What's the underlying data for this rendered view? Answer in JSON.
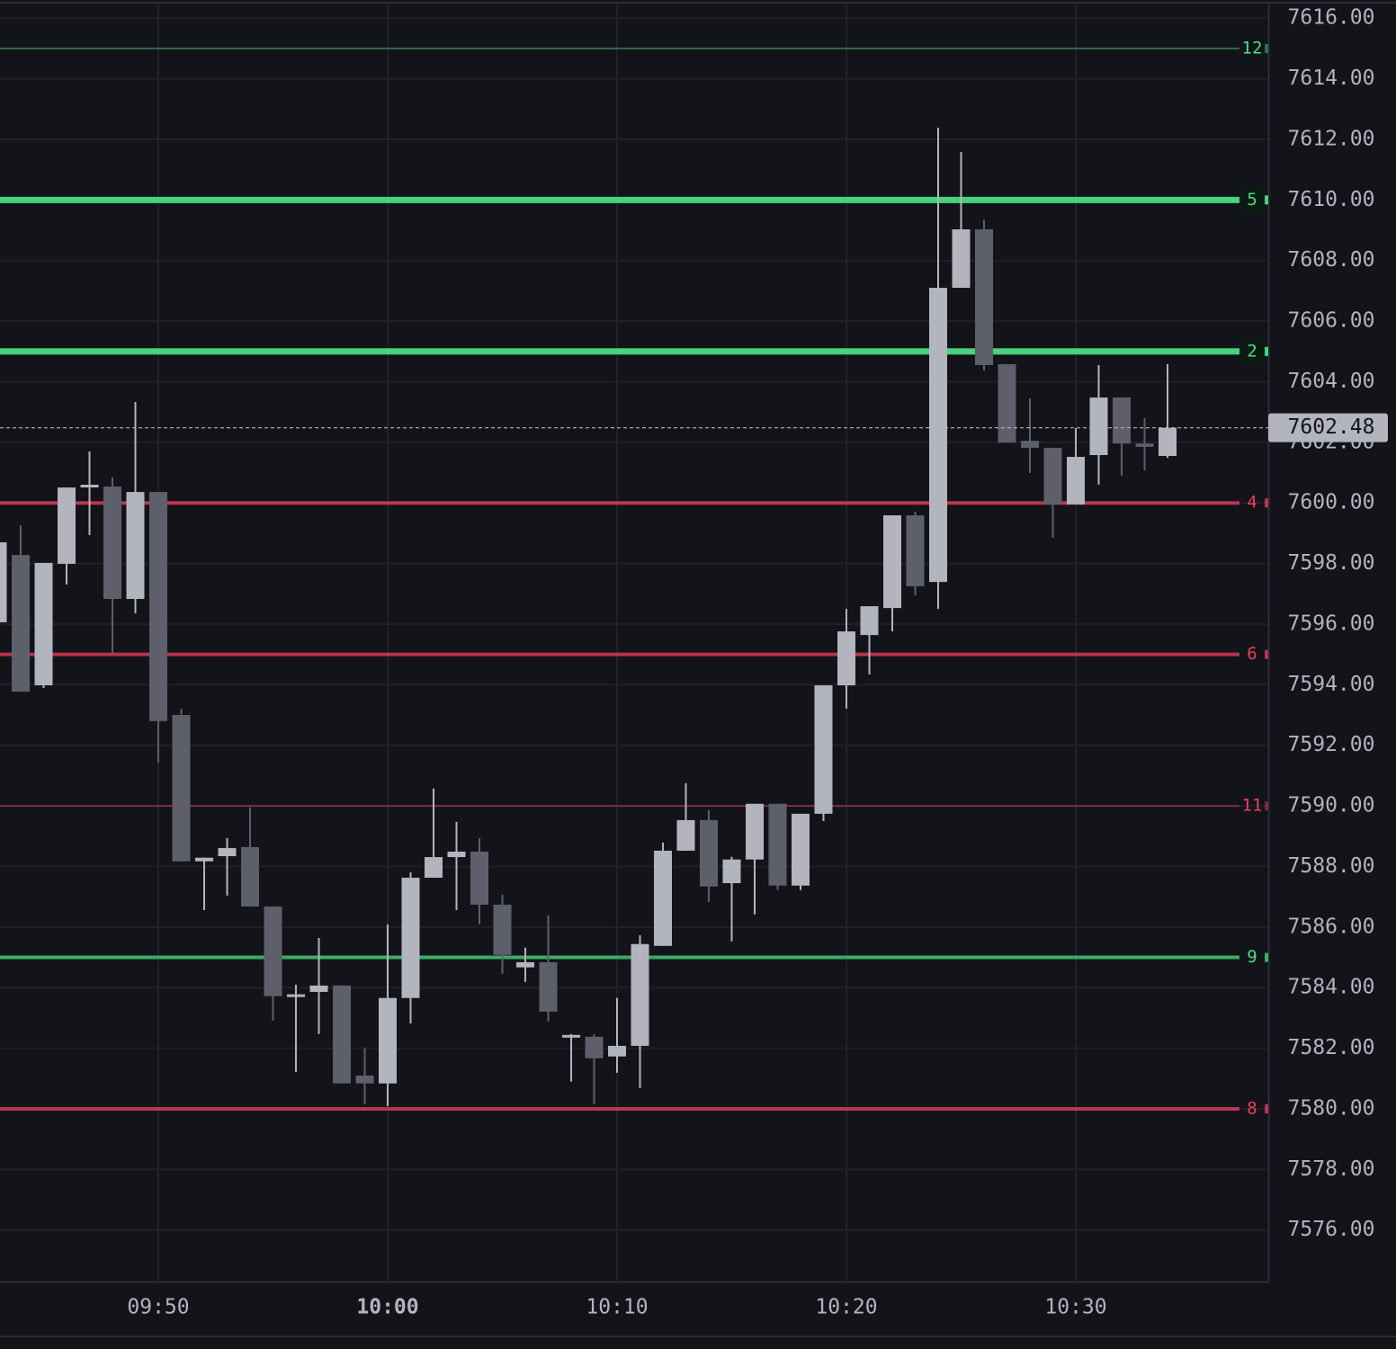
{
  "chart_data": {
    "type": "candlestick",
    "x": [
      "09:43",
      "09:44",
      "09:45",
      "09:46",
      "09:47",
      "09:48",
      "09:49",
      "09:50",
      "09:51",
      "09:52",
      "09:53",
      "09:54",
      "09:55",
      "09:56",
      "09:57",
      "09:58",
      "09:59",
      "10:00",
      "10:01",
      "10:02",
      "10:03",
      "10:04",
      "10:05",
      "10:06",
      "10:07",
      "10:08",
      "10:09",
      "10:10",
      "10:11",
      "10:12",
      "10:13",
      "10:14",
      "10:15",
      "10:16",
      "10:17",
      "10:18",
      "10:19",
      "10:20",
      "10:21",
      "10:22",
      "10:23",
      "10:24",
      "10:25",
      "10:26",
      "10:27",
      "10:28",
      "10:29",
      "10:30",
      "10:31",
      "10:32",
      "10:33",
      "10:34"
    ],
    "open": [
      7596.06,
      7598.28,
      7593.98,
      7597.99,
      7600.57,
      7600.54,
      7596.83,
      7600.36,
      7593.0,
      7588.17,
      7588.34,
      7588.64,
      7586.68,
      7583.75,
      7583.86,
      7584.07,
      7581.1,
      7580.84,
      7583.66,
      7587.63,
      7588.31,
      7588.49,
      7586.74,
      7584.67,
      7584.84,
      7582.38,
      7582.38,
      7581.73,
      7582.08,
      7585.38,
      7588.52,
      7589.53,
      7587.45,
      7588.23,
      7590.07,
      7587.37,
      7589.74,
      7593.98,
      7595.64,
      7596.53,
      7599.59,
      7597.39,
      7607.1,
      7609.03,
      7604.58,
      7602.05,
      7601.82,
      7599.95,
      7601.58,
      7603.48,
      7601.96,
      7601.55
    ],
    "high": [
      7598.7,
      7599.26,
      7598.02,
      7600.51,
      7601.7,
      7600.84,
      7603.33,
      7600.36,
      7593.21,
      7588.29,
      7588.94,
      7589.95,
      7586.68,
      7584.1,
      7585.64,
      7584.07,
      7582.0,
      7586.09,
      7587.81,
      7590.57,
      7589.47,
      7588.94,
      7587.07,
      7585.32,
      7586.39,
      7582.47,
      7582.47,
      7583.66,
      7585.73,
      7588.79,
      7590.75,
      7589.86,
      7588.32,
      7590.07,
      7590.07,
      7589.74,
      7593.98,
      7596.5,
      7596.59,
      7599.59,
      7599.71,
      7612.38,
      7611.58,
      7609.35,
      7604.58,
      7603.45,
      7601.82,
      7602.47,
      7604.55,
      7603.48,
      7602.8,
      7604.58
    ],
    "low": [
      7596.06,
      7593.77,
      7593.89,
      7597.31,
      7598.94,
      7595.02,
      7596.36,
      7591.43,
      7588.17,
      7586.56,
      7587.04,
      7586.68,
      7582.91,
      7581.22,
      7582.47,
      7580.84,
      7580.15,
      7580.09,
      7582.82,
      7587.63,
      7586.56,
      7586.09,
      7584.46,
      7584.19,
      7582.88,
      7580.9,
      7580.15,
      7581.19,
      7580.69,
      7585.38,
      7588.52,
      7586.83,
      7585.53,
      7586.42,
      7587.22,
      7587.22,
      7589.5,
      7593.21,
      7594.34,
      7595.76,
      7596.95,
      7596.5,
      7607.1,
      7604.37,
      7601.99,
      7600.99,
      7598.85,
      7599.95,
      7600.6,
      7600.9,
      7601.07,
      7601.49
    ],
    "close": [
      7598.7,
      7593.77,
      7598.02,
      7600.51,
      7600.6,
      7596.83,
      7600.36,
      7592.8,
      7588.17,
      7588.29,
      7588.61,
      7586.68,
      7583.72,
      7583.78,
      7584.07,
      7580.84,
      7580.84,
      7583.66,
      7587.63,
      7588.31,
      7588.49,
      7586.74,
      7585.08,
      7584.84,
      7583.21,
      7582.44,
      7581.67,
      7582.08,
      7585.44,
      7588.52,
      7589.53,
      7587.34,
      7588.23,
      7590.07,
      7587.37,
      7589.74,
      7593.98,
      7595.76,
      7596.59,
      7599.59,
      7597.25,
      7607.1,
      7609.03,
      7604.55,
      7601.99,
      7601.82,
      7599.95,
      7601.52,
      7603.48,
      7601.96,
      7601.85,
      7602.48
    ],
    "up_color": "#b2b5be",
    "down_color": "#5d606b",
    "xlim": [
      "09:43",
      "10:39"
    ],
    "xticks": [
      "09:50",
      "10:00",
      "10:10",
      "10:20",
      "10:30"
    ],
    "ylim": [
      7574.3,
      7616.6
    ],
    "yticks": [
      {
        "value": 7576,
        "label": "7576.00"
      },
      {
        "value": 7578,
        "label": "7578.00"
      },
      {
        "value": 7580,
        "label": "7580.00"
      },
      {
        "value": 7582,
        "label": "7582.00"
      },
      {
        "value": 7584,
        "label": "7584.00"
      },
      {
        "value": 7586,
        "label": "7586.00"
      },
      {
        "value": 7588,
        "label": "7588.00"
      },
      {
        "value": 7590,
        "label": "7590.00"
      },
      {
        "value": 7592,
        "label": "7592.00"
      },
      {
        "value": 7594,
        "label": "7594.00"
      },
      {
        "value": 7596,
        "label": "7596.00"
      },
      {
        "value": 7598,
        "label": "7598.00"
      },
      {
        "value": 7600,
        "label": "7600.00"
      },
      {
        "value": 7602,
        "label": "7602.00"
      },
      {
        "value": 7604,
        "label": "7604.00"
      },
      {
        "value": 7606,
        "label": "7606.00"
      },
      {
        "value": 7608,
        "label": "7608.00"
      },
      {
        "value": 7610,
        "label": "7610.00"
      },
      {
        "value": 7612,
        "label": "7612.00"
      },
      {
        "value": 7614,
        "label": "7614.00"
      },
      {
        "value": 7616,
        "label": "7616.00"
      }
    ],
    "grid": true,
    "levels": [
      {
        "label": "12",
        "value": 7615,
        "color": "#4ade80",
        "style": "thin"
      },
      {
        "label": "5",
        "value": 7610,
        "color": "#4ade80",
        "style": "thick"
      },
      {
        "label": "2",
        "value": 7605,
        "color": "#4ade80",
        "style": "thick"
      },
      {
        "label": "4",
        "value": 7600,
        "color": "#f23d5c",
        "style": "medium"
      },
      {
        "label": "6",
        "value": 7595,
        "color": "#f23d5c",
        "style": "medium"
      },
      {
        "label": "11",
        "value": 7590,
        "color": "#f23d5c",
        "style": "thin"
      },
      {
        "label": "9",
        "value": 7585,
        "color": "#4ade80",
        "style": "medium"
      },
      {
        "label": "8",
        "value": 7580,
        "color": "#f23d5c",
        "style": "medium"
      }
    ],
    "last_price": {
      "value": 7602.48,
      "label": "7602.48"
    }
  }
}
